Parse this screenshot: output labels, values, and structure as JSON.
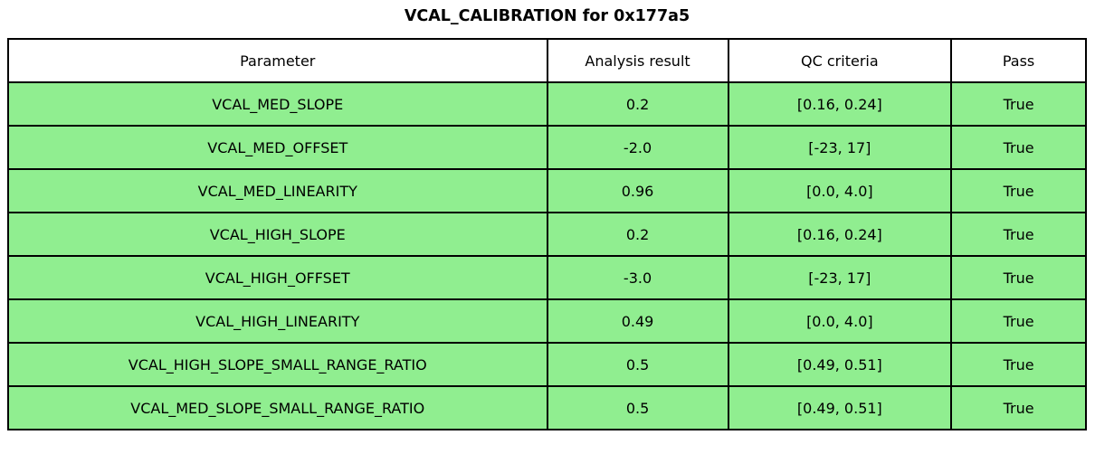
{
  "chart_data": {
    "type": "table",
    "title": "VCAL_CALIBRATION for 0x177a5",
    "columns": [
      "Parameter",
      "Analysis result",
      "QC criteria",
      "Pass"
    ],
    "rows": [
      [
        "VCAL_MED_SLOPE",
        "0.2",
        "[0.16, 0.24]",
        "True"
      ],
      [
        "VCAL_MED_OFFSET",
        "-2.0",
        "[-23, 17]",
        "True"
      ],
      [
        "VCAL_MED_LINEARITY",
        "0.96",
        "[0.0, 4.0]",
        "True"
      ],
      [
        "VCAL_HIGH_SLOPE",
        "0.2",
        "[0.16, 0.24]",
        "True"
      ],
      [
        "VCAL_HIGH_OFFSET",
        "-3.0",
        "[-23, 17]",
        "True"
      ],
      [
        "VCAL_HIGH_LINEARITY",
        "0.49",
        "[0.0, 4.0]",
        "True"
      ],
      [
        "VCAL_HIGH_SLOPE_SMALL_RANGE_RATIO",
        "0.5",
        "[0.49, 0.51]",
        "True"
      ],
      [
        "VCAL_MED_SLOPE_SMALL_RANGE_RATIO",
        "0.5",
        "[0.49, 0.51]",
        "True"
      ]
    ],
    "colors": {
      "row_bg": "#90ee90",
      "header_bg": "#ffffff",
      "border": "#000000",
      "pass_true": "#90ee90"
    },
    "layout": {
      "col_widths_pct": [
        50.0,
        16.8,
        20.7,
        12.5
      ],
      "legend_position": "none",
      "grid": "full-borders"
    }
  }
}
